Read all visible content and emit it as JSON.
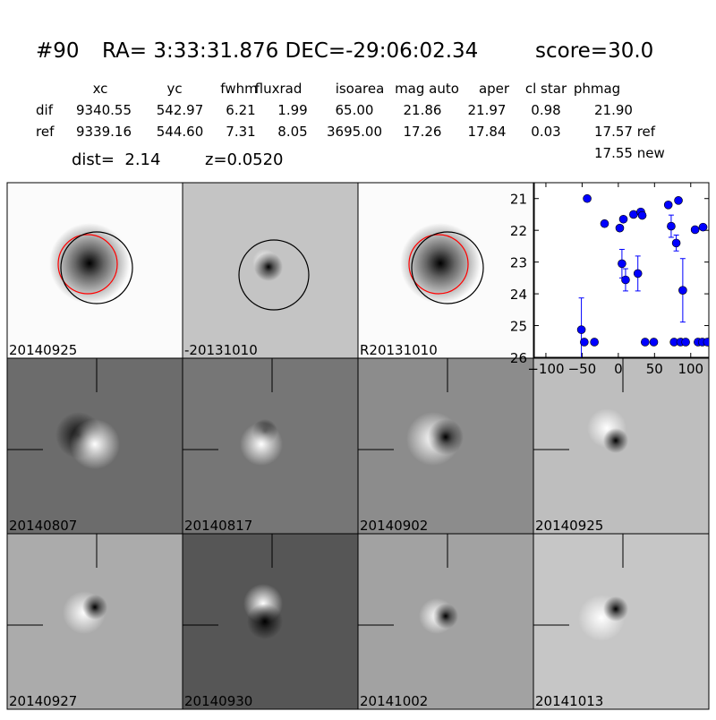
{
  "header": {
    "id": "#90",
    "coords": "RA= 3:33:31.876 DEC=-29:06:02.34",
    "score": "score=30.0"
  },
  "table": {
    "columns": [
      "xc",
      "yc",
      "fwhm",
      "fluxrad",
      "isoarea",
      "mag auto",
      "aper",
      "cl star",
      "phmag"
    ],
    "rows": [
      {
        "name": "dif",
        "cells": [
          "9340.55",
          "542.97",
          "6.21",
          "1.99",
          "65.00",
          "21.86",
          "21.97",
          "0.98",
          "21.90"
        ]
      },
      {
        "name": "ref",
        "cells": [
          "9339.16",
          "544.60",
          "7.31",
          "8.05",
          "3695.00",
          "17.26",
          "17.84",
          "0.03",
          "17.57 ref"
        ]
      }
    ],
    "extra": "17.55 new"
  },
  "distance": {
    "dist": "dist=  2.14",
    "z": "z=0.0520"
  },
  "stamps": [
    {
      "label": "20140925"
    },
    {
      "label": "-20131010"
    },
    {
      "label": "R20131010"
    },
    {
      "label": "20140807"
    },
    {
      "label": "20140817"
    },
    {
      "label": "20140902"
    },
    {
      "label": "20140925",
      "color": "#ff0000"
    },
    {
      "label": "20140927"
    },
    {
      "label": "20140930"
    },
    {
      "label": "20141002"
    },
    {
      "label": "20141013"
    }
  ],
  "chart_data": {
    "type": "scatter",
    "xlim": [
      -116,
      125
    ],
    "ylim": [
      26,
      20.5
    ],
    "xticks": [
      {
        "value": -100,
        "label": "−100"
      },
      {
        "value": -50,
        "label": "−50"
      },
      0,
      50,
      100
    ],
    "yticks": [
      21,
      22,
      23,
      24,
      25,
      26
    ],
    "series": [
      {
        "color": "#0000ff",
        "x": [
          -43,
          -51,
          -47,
          -33,
          -19,
          2,
          7,
          5,
          10,
          21,
          31,
          33,
          27,
          37,
          49,
          69,
          73,
          80,
          83,
          89,
          77,
          86,
          93,
          106,
          117,
          110,
          116,
          123
        ],
        "values": [
          21.0,
          25.13,
          25.52,
          25.52,
          21.79,
          21.93,
          21.65,
          23.05,
          23.56,
          21.5,
          21.42,
          21.53,
          23.36,
          25.52,
          25.52,
          21.2,
          21.87,
          22.4,
          21.06,
          23.89,
          25.52,
          25.52,
          25.52,
          21.98,
          21.9,
          25.52,
          25.52,
          25.52
        ],
        "errors": [
          null,
          1.0,
          null,
          null,
          null,
          null,
          null,
          0.45,
          0.35,
          null,
          null,
          null,
          0.55,
          null,
          null,
          null,
          0.35,
          0.25,
          null,
          1.0,
          null,
          null,
          null,
          null,
          null,
          null,
          null,
          null
        ]
      }
    ]
  }
}
